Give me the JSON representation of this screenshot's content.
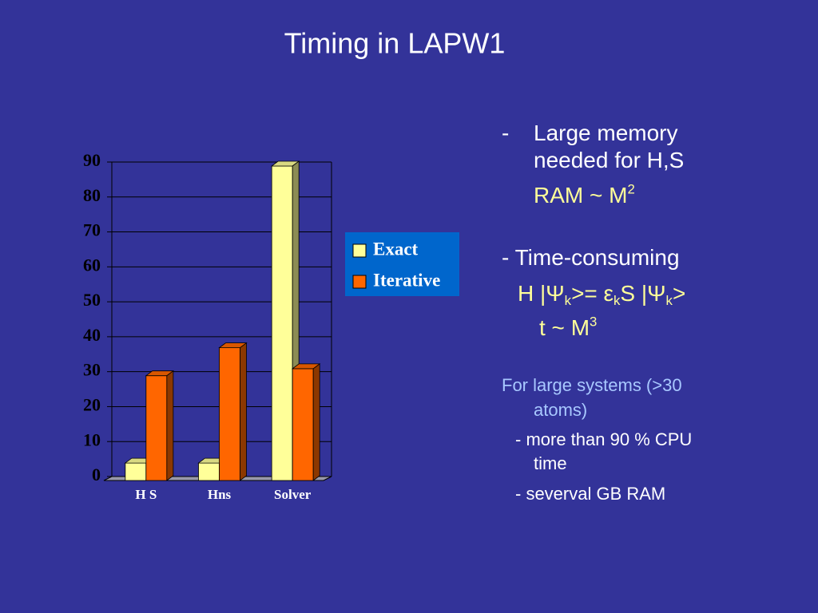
{
  "slide": {
    "memory": {
      "marker": "-",
      "lines": [
        "Large memory",
        "needed for H,S"
      ]
    },
    "ram": [
      "RAM ~ M",
      "2"
    ],
    "time": "- Time-consuming",
    "equation": [
      "H |Ψ",
      "k",
      ">= ε",
      "k",
      "S |Ψ",
      "k",
      ">"
    ],
    "cost": [
      "t ~ M",
      "3"
    ],
    "systems": [
      "For large systems (>30",
      "atoms)"
    ],
    "cpu": [
      "- more than 90 % CPU",
      "time"
    ],
    "gb": "- severval GB RAM"
  },
  "chart_data": {
    "type": "bar",
    "title": "Timing in LAPW1",
    "categories": [
      "H S",
      "Hns",
      "Solver"
    ],
    "series": [
      {
        "name": "Exact",
        "color": "#ffff99",
        "values": [
          5,
          5,
          90
        ]
      },
      {
        "name": "Iterative",
        "color": "#ff6600",
        "values": [
          30,
          38,
          32
        ]
      }
    ],
    "ylim": [
      0,
      90
    ],
    "yticks": [
      0,
      10,
      20,
      30,
      40,
      50,
      60,
      70,
      80,
      90
    ],
    "grid": true,
    "legend": "right"
  }
}
